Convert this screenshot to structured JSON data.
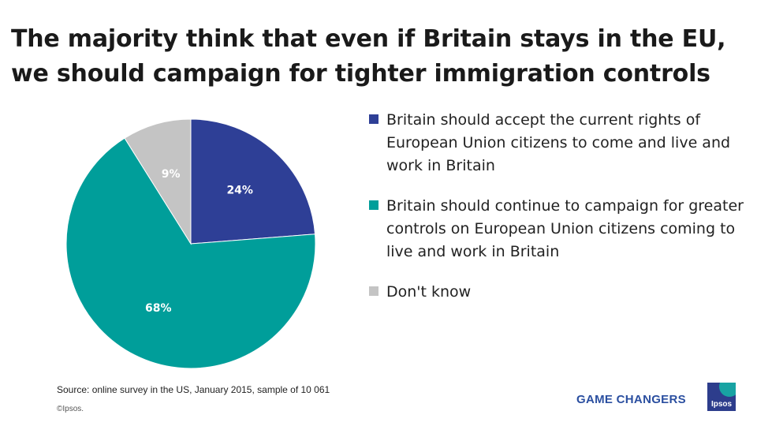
{
  "title": "The majority think that even if Britain stays in the EU, we should campaign for tighter immigration controls",
  "chart_data": {
    "type": "pie",
    "title": "",
    "slices": [
      {
        "name": "Britain should accept the current rights of European Union citizens to come and live and work in Britain",
        "value": 24,
        "label": "24%",
        "color": "#2e3f96"
      },
      {
        "name": "Britain should continue to campaign for greater controls on European Union citizens coming to live and work in Britain",
        "value": 68,
        "label": "68%",
        "color": "#009e9a"
      },
      {
        "name": "Don't know",
        "value": 9,
        "label": "9%",
        "color": "#c4c4c4"
      }
    ],
    "start": "12 o'clock",
    "direction": "clockwise",
    "legend_position": "right"
  },
  "source": "Source: online survey in the US, January 2015, sample of 10 061",
  "copyright": "©Ipsos.",
  "branding": {
    "tagline": "GAME CHANGERS",
    "logo_text": "Ipsos",
    "tagline_color": "#2b4fa0",
    "logo_color": "#2d3d8c",
    "logo_accent_color": "#18a3a3"
  }
}
